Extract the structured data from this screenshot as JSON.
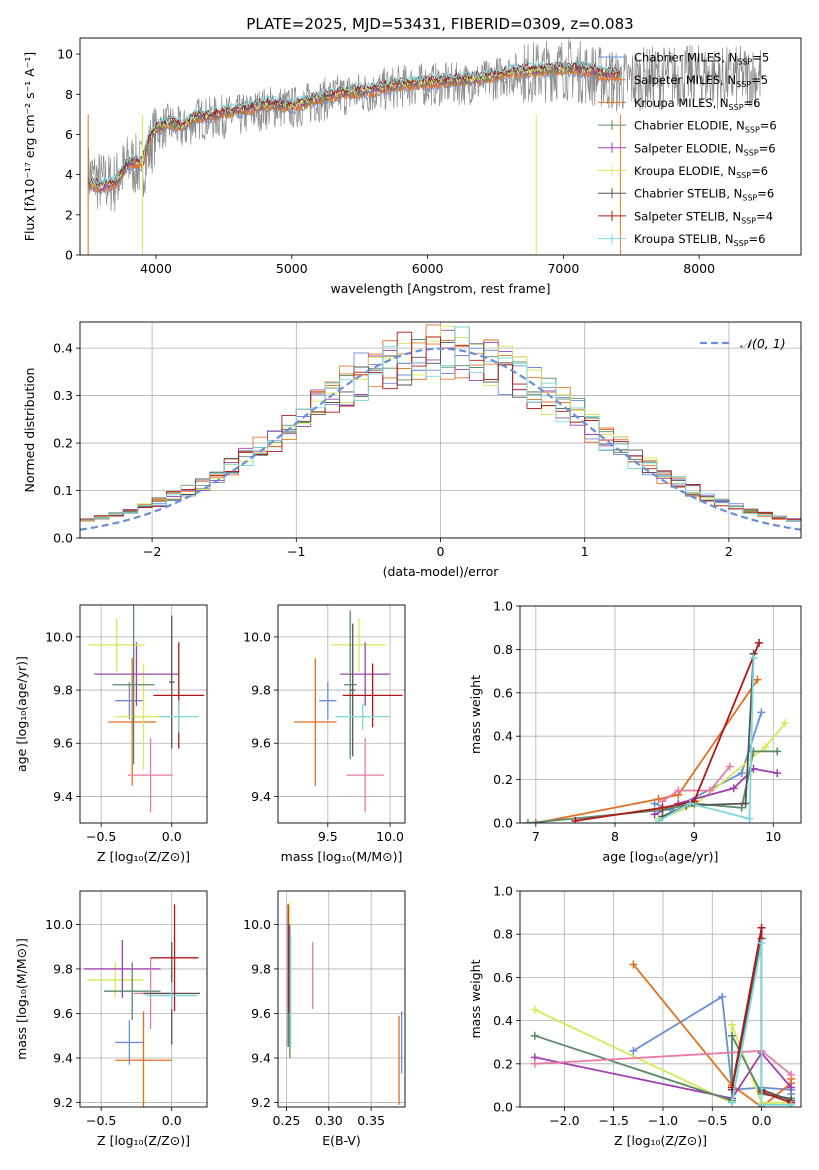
{
  "figure": {
    "title": "PLATE=2025, MJD=53431, FIBERID=0309, z=0.083"
  },
  "colors": {
    "Chabrier MILES": "#6b8fd6",
    "Salpeter MILES": "#ee7a2a",
    "Kroupa MILES": "#e07020",
    "Chabrier ELODIE": "#5a8a68",
    "Salpeter ELODIE": "#a040b0",
    "Kroupa ELODIE": "#d8e858",
    "Chabrier STELIB": "#555555",
    "Salpeter STELIB": "#b01818",
    "Kroupa STELIB": "#7dd8dc",
    "normal": "#6b8fd6",
    "pink": "#ea7aa8",
    "grey_data": "#8a8a8a"
  },
  "chart_data": [
    {
      "id": "spectrum",
      "type": "line",
      "title": "PLATE=2025, MJD=53431, FIBERID=0309, z=0.083",
      "xlabel": "wavelength [Angstrom, rest frame]",
      "ylabel": "Flux [fλ10⁻¹⁷ erg cm⁻² s⁻¹ A⁻¹]",
      "xlim": [
        3440,
        8750
      ],
      "ylim": [
        0,
        10.8
      ],
      "xticks": [
        4000,
        5000,
        6000,
        7000,
        8000
      ],
      "yticks": [
        0,
        2,
        4,
        6,
        8,
        10
      ],
      "legend_position": "top-right",
      "legend": [
        "Chabrier MILES, N_SSP=5",
        "Salpeter MILES, N_SSP=5",
        "Kroupa MILES, N_SSP=6",
        "Chabrier ELODIE, N_SSP=6",
        "Salpeter ELODIE, N_SSP=6",
        "Kroupa ELODIE, N_SSP=6",
        "Chabrier STELIB, N_SSP=6",
        "Salpeter STELIB, N_SSP=4",
        "Kroupa STELIB, N_SSP=6"
      ],
      "data_series": {
        "name": "",
        "x": [
          3500,
          3600,
          3700,
          3800,
          3900,
          4000,
          4100,
          4200,
          4300,
          4400,
          4500,
          4600,
          4700,
          4800,
          4900,
          5000,
          5200,
          5400,
          5600,
          5800,
          6000,
          6200,
          6400,
          6600,
          6800,
          7000,
          7200,
          7400,
          7600,
          7800,
          8000,
          8200,
          8400
        ],
        "y": [
          4.0,
          3.6,
          3.6,
          4.6,
          4.3,
          6.2,
          6.5,
          6.2,
          6.8,
          6.8,
          6.9,
          6.9,
          7.1,
          7.3,
          7.4,
          7.3,
          7.7,
          8.0,
          8.1,
          8.4,
          8.5,
          8.5,
          8.6,
          9.0,
          9.1,
          9.3,
          9.0,
          8.6,
          8.8,
          8.9,
          8.9,
          8.8,
          8.9
        ]
      },
      "model_series": {
        "name": "",
        "x": [
          3500,
          3600,
          3700,
          3800,
          3900,
          3950,
          4000,
          4100,
          4200,
          4300,
          4400,
          4500,
          4600,
          4700,
          4800,
          4900,
          5000,
          5200,
          5400,
          5600,
          5800,
          6000,
          6200,
          6400,
          6600,
          6800,
          7000,
          7200,
          7300
        ],
        "y": [
          3.6,
          3.4,
          3.6,
          4.6,
          4.6,
          5.8,
          6.3,
          6.6,
          6.4,
          6.9,
          6.9,
          7.1,
          7.2,
          7.3,
          7.5,
          7.5,
          7.4,
          7.8,
          8.1,
          8.2,
          8.5,
          8.6,
          8.7,
          8.8,
          9.1,
          9.2,
          9.3,
          9.2,
          9.0
        ]
      }
    },
    {
      "id": "residuals",
      "type": "bar",
      "xlabel": "(data-model)/error",
      "ylabel": "Normed distribution",
      "xlim": [
        -2.5,
        2.5
      ],
      "ylim": [
        0,
        0.455
      ],
      "xticks": [
        -2,
        -1,
        0,
        1,
        2
      ],
      "yticks": [
        0.0,
        0.1,
        0.2,
        0.3,
        0.4
      ],
      "legend": [
        "𝒩(0, 1)"
      ],
      "legend_position": "top-right",
      "bin_width": 0.1
    },
    {
      "id": "age_vs_Z",
      "type": "scatter",
      "xlabel": "Z [log₁₀(Z/Z⊙)]",
      "ylabel": "age  [log₁₀(age/yr)]",
      "xlim": [
        -0.65,
        0.25
      ],
      "ylim": [
        9.3,
        10.12
      ],
      "xticks": [
        -0.5,
        0.0
      ],
      "yticks": [
        9.4,
        9.6,
        9.8,
        10.0
      ],
      "points": [
        {
          "x": -0.3,
          "y": 9.76,
          "xerr": 0.1,
          "yerr": 0.07,
          "color": "#6b8fd6"
        },
        {
          "x": -0.28,
          "y": 9.68,
          "xerr": 0.17,
          "yerr": 0.24,
          "color": "#e07020"
        },
        {
          "x": -0.2,
          "y": 9.7,
          "xerr": 0.2,
          "yerr": 0.2,
          "color": "#d8e858"
        },
        {
          "x": -0.25,
          "y": 9.86,
          "xerr": 0.3,
          "yerr": 0.12,
          "color": "#a040b0"
        },
        {
          "x": -0.39,
          "y": 9.97,
          "xerr": 0.2,
          "yerr": 0.1,
          "color": "#d8e858"
        },
        {
          "x": -0.27,
          "y": 9.82,
          "xerr": 0.15,
          "yerr": 0.3,
          "color": "#5a8a68"
        },
        {
          "x": -0.15,
          "y": 9.48,
          "xerr": 0.16,
          "yerr": 0.14,
          "color": "#ea7aa8"
        },
        {
          "x": 0.0,
          "y": 9.83,
          "xerr": 0.02,
          "yerr": 0.25,
          "color": "#555555"
        },
        {
          "x": 0.05,
          "y": 9.78,
          "xerr": 0.18,
          "yerr": 0.2,
          "color": "#b01818"
        },
        {
          "x": 0.05,
          "y": 9.7,
          "xerr": 0.14,
          "yerr": 0.06,
          "color": "#7dd8dc"
        }
      ]
    },
    {
      "id": "age_vs_mass",
      "type": "scatter",
      "xlabel": "mass [log₁₀(M/M⊙)]",
      "ylabel": "",
      "xlim": [
        9.1,
        10.12
      ],
      "ylim": [
        9.3,
        10.12
      ],
      "xticks": [
        9.5,
        10.0
      ],
      "yticks": [
        9.4,
        9.6,
        9.8,
        10.0
      ],
      "points": [
        {
          "x": 9.5,
          "y": 9.76,
          "xerr": 0.07,
          "yerr": 0.07,
          "color": "#6b8fd6"
        },
        {
          "x": 9.4,
          "y": 9.68,
          "xerr": 0.17,
          "yerr": 0.24,
          "color": "#e07020"
        },
        {
          "x": 9.75,
          "y": 9.97,
          "xerr": 0.22,
          "yerr": 0.1,
          "color": "#d8e858"
        },
        {
          "x": 9.8,
          "y": 9.86,
          "xerr": 0.2,
          "yerr": 0.12,
          "color": "#a040b0"
        },
        {
          "x": 9.68,
          "y": 9.82,
          "xerr": 0.05,
          "yerr": 0.28,
          "color": "#5a8a68"
        },
        {
          "x": 9.8,
          "y": 9.48,
          "xerr": 0.15,
          "yerr": 0.14,
          "color": "#ea7aa8"
        },
        {
          "x": 9.7,
          "y": 9.8,
          "xerr": 0.02,
          "yerr": 0.25,
          "color": "#555555"
        },
        {
          "x": 9.86,
          "y": 9.78,
          "xerr": 0.24,
          "yerr": 0.12,
          "color": "#b01818"
        },
        {
          "x": 9.78,
          "y": 9.7,
          "xerr": 0.22,
          "yerr": 0.05,
          "color": "#7dd8dc"
        }
      ]
    },
    {
      "id": "weight_vs_age",
      "type": "line",
      "xlabel": "age  [log₁₀(age/yr)]",
      "ylabel": "mass weight",
      "xlim": [
        6.8,
        10.35
      ],
      "ylim": [
        0,
        1.0
      ],
      "xticks": [
        7,
        8,
        9,
        10
      ],
      "yticks": [
        0.0,
        0.2,
        0.4,
        0.6,
        0.8,
        1.0
      ],
      "series": [
        {
          "color": "#6b8fd6",
          "x": [
            8.5,
            8.7,
            9.6,
            9.85
          ],
          "y": [
            0.09,
            0.06,
            0.23,
            0.51
          ]
        },
        {
          "color": "#e07020",
          "x": [
            7.0,
            8.55,
            8.8,
            9.8
          ],
          "y": [
            0.0,
            0.11,
            0.13,
            0.66
          ]
        },
        {
          "color": "#d8e858",
          "x": [
            8.55,
            9.0,
            9.9,
            10.15
          ],
          "y": [
            0.02,
            0.08,
            0.35,
            0.46
          ]
        },
        {
          "color": "#a040b0",
          "x": [
            8.5,
            8.8,
            9.5,
            9.75,
            10.05
          ],
          "y": [
            0.04,
            0.09,
            0.16,
            0.25,
            0.23
          ]
        },
        {
          "color": "#5a8a68",
          "x": [
            6.9,
            8.6,
            9.0,
            9.6,
            9.75,
            10.05
          ],
          "y": [
            0.0,
            0.06,
            0.09,
            0.07,
            0.33,
            0.33
          ]
        },
        {
          "color": "#ea7aa8",
          "x": [
            8.6,
            8.8,
            9.2,
            9.45
          ],
          "y": [
            0.1,
            0.15,
            0.15,
            0.26
          ]
        },
        {
          "color": "#555555",
          "x": [
            8.6,
            8.9,
            9.65,
            9.75
          ],
          "y": [
            0.03,
            0.08,
            0.09,
            0.78
          ]
        },
        {
          "color": "#b01818",
          "x": [
            7.5,
            8.6,
            9.0,
            9.82
          ],
          "y": [
            0.01,
            0.07,
            0.1,
            0.83
          ]
        },
        {
          "color": "#7dd8dc",
          "x": [
            8.55,
            8.95,
            9.7,
            9.75
          ],
          "y": [
            0.01,
            0.09,
            0.02,
            0.76
          ]
        }
      ]
    },
    {
      "id": "mass_vs_Z",
      "type": "scatter",
      "xlabel": "Z [log₁₀(Z/Z⊙)]",
      "ylabel": "mass [log₁₀(M/M⊙)]",
      "xlim": [
        -0.65,
        0.25
      ],
      "ylim": [
        9.18,
        10.15
      ],
      "xticks": [
        -0.5,
        0.0
      ],
      "yticks": [
        9.2,
        9.4,
        9.6,
        9.8,
        10.0
      ],
      "points": [
        {
          "x": -0.3,
          "y": 9.47,
          "xerr": 0.1,
          "yerr": 0.1,
          "color": "#6b8fd6"
        },
        {
          "x": -0.2,
          "y": 9.39,
          "xerr": 0.2,
          "yerr": 0.22,
          "color": "#e07020"
        },
        {
          "x": -0.4,
          "y": 9.75,
          "xerr": 0.2,
          "yerr": 0.08,
          "color": "#d8e858"
        },
        {
          "x": -0.35,
          "y": 9.8,
          "xerr": 0.27,
          "yerr": 0.13,
          "color": "#a040b0"
        },
        {
          "x": -0.28,
          "y": 9.7,
          "xerr": 0.2,
          "yerr": 0.13,
          "color": "#5a8a68"
        },
        {
          "x": -0.15,
          "y": 9.69,
          "xerr": 0.12,
          "yerr": 0.16,
          "color": "#ea7aa8"
        },
        {
          "x": 0.0,
          "y": 9.69,
          "xerr": 0.2,
          "yerr": 0.23,
          "color": "#555555"
        },
        {
          "x": 0.02,
          "y": 9.85,
          "xerr": 0.17,
          "yerr": 0.24,
          "color": "#b01818"
        },
        {
          "x": 0.0,
          "y": 9.68,
          "xerr": 0.18,
          "yerr": 0.06,
          "color": "#7dd8dc"
        }
      ]
    },
    {
      "id": "mass_vs_ebv",
      "type": "scatter",
      "xlabel": "E(B-V)",
      "ylabel": "",
      "xlim": [
        0.24,
        0.39
      ],
      "ylim": [
        9.18,
        10.15
      ],
      "xticks": [
        0.25,
        0.3,
        0.35
      ],
      "yticks": [
        9.2,
        9.4,
        9.6,
        9.8,
        10.0
      ],
      "points": [
        {
          "x": 0.386,
          "y": 9.47,
          "xerr": 0.0,
          "yerr": 0.14,
          "color": "#6b8fd6"
        },
        {
          "x": 0.383,
          "y": 9.39,
          "xerr": 0.0,
          "yerr": 0.2,
          "color": "#e07020"
        },
        {
          "x": 0.254,
          "y": 9.75,
          "xerr": 0.0,
          "yerr": 0.35,
          "color": "#d8e858"
        },
        {
          "x": 0.253,
          "y": 9.8,
          "xerr": 0.0,
          "yerr": 0.2,
          "color": "#a040b0"
        },
        {
          "x": 0.254,
          "y": 9.7,
          "xerr": 0.0,
          "yerr": 0.3,
          "color": "#5a8a68"
        },
        {
          "x": 0.281,
          "y": 9.77,
          "xerr": 0.0,
          "yerr": 0.15,
          "color": "#ea7aa8"
        },
        {
          "x": 0.252,
          "y": 9.69,
          "xerr": 0.0,
          "yerr": 0.24,
          "color": "#555555"
        },
        {
          "x": 0.252,
          "y": 9.85,
          "xerr": 0.0,
          "yerr": 0.24,
          "color": "#b01818"
        },
        {
          "x": 0.255,
          "y": 9.7,
          "xerr": 0.0,
          "yerr": 0.25,
          "color": "#7dd8dc"
        }
      ]
    },
    {
      "id": "weight_vs_Z",
      "type": "line",
      "xlabel": "Z [log₁₀(Z/Z⊙)]",
      "ylabel": "mass weight",
      "xlim": [
        -2.45,
        0.4
      ],
      "ylim": [
        0,
        1.0
      ],
      "xticks": [
        -2.0,
        -1.5,
        -1.0,
        -0.5,
        0.0
      ],
      "yticks": [
        0.0,
        0.2,
        0.4,
        0.6,
        0.8,
        1.0
      ],
      "series": [
        {
          "color": "#6b8fd6",
          "x": [
            -1.3,
            -0.4,
            -0.3,
            -0.3,
            0.0,
            0.3,
            0.3
          ],
          "y": [
            0.26,
            0.51,
            0.08,
            0.08,
            0.09,
            0.08,
            0.06
          ]
        },
        {
          "color": "#e07020",
          "x": [
            -1.3,
            -0.3,
            0.0,
            0.3,
            0.3
          ],
          "y": [
            0.66,
            0.1,
            0.0,
            0.11,
            0.13
          ]
        },
        {
          "color": "#d8e858",
          "x": [
            -2.3,
            -0.3,
            -0.3,
            0.0,
            0.3
          ],
          "y": [
            0.45,
            0.02,
            0.38,
            0.02,
            0.02
          ]
        },
        {
          "color": "#a040b0",
          "x": [
            -2.3,
            -0.3,
            0.0,
            0.3
          ],
          "y": [
            0.23,
            0.04,
            0.25,
            0.09
          ]
        },
        {
          "color": "#5a8a68",
          "x": [
            -2.3,
            -0.3,
            -0.3,
            0.0,
            0.3
          ],
          "y": [
            0.33,
            0.03,
            0.33,
            0.06,
            0.04
          ]
        },
        {
          "color": "#ea7aa8",
          "x": [
            -2.3,
            0.0,
            0.3
          ],
          "y": [
            0.2,
            0.26,
            0.15
          ]
        },
        {
          "color": "#555555",
          "x": [
            -0.3,
            0.0,
            0.0,
            0.3
          ],
          "y": [
            0.08,
            0.78,
            0.08,
            0.03
          ]
        },
        {
          "color": "#b01818",
          "x": [
            -0.3,
            0.0,
            0.0,
            0.3
          ],
          "y": [
            0.09,
            0.83,
            0.07,
            0.02
          ]
        },
        {
          "color": "#7dd8dc",
          "x": [
            -0.3,
            0.0,
            0.0,
            0.3
          ],
          "y": [
            0.02,
            0.76,
            0.01,
            0.01
          ]
        }
      ]
    }
  ]
}
